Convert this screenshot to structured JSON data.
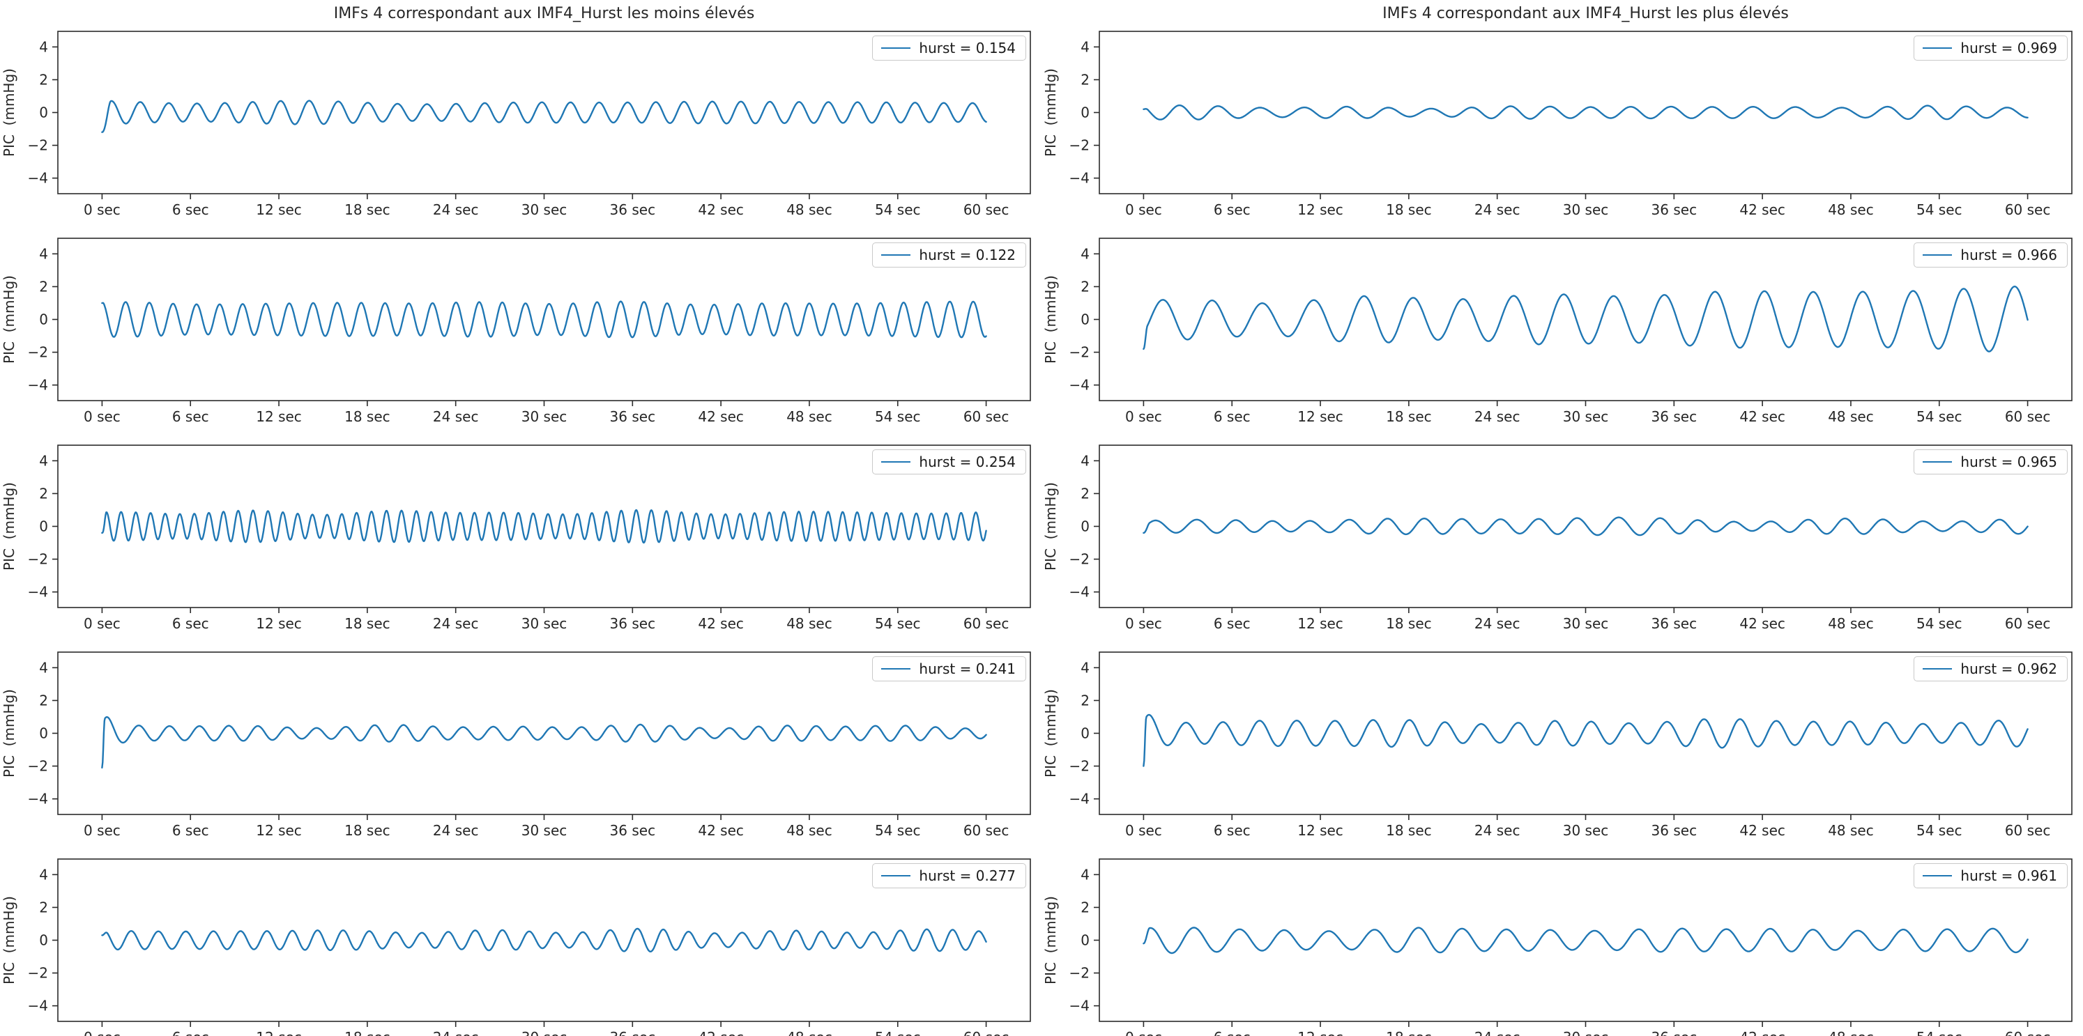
{
  "figure": {
    "titles": {
      "left": "IMFs 4 correspondant aux IMF4_Hurst les moins élevés",
      "right": "IMFs 4 correspondant aux IMF4_Hurst les plus élevés"
    }
  },
  "axes": {
    "ylabel": "PIC  (mmHg)",
    "y_tick_labels": [
      "4",
      "2",
      "0",
      "−2",
      "−4"
    ],
    "y_tick_values": [
      4,
      2,
      0,
      -2,
      -4
    ],
    "x_tick_labels": [
      "0 sec",
      "6 sec",
      "12 sec",
      "18 sec",
      "24 sec",
      "30 sec",
      "36 sec",
      "42 sec",
      "48 sec",
      "54 sec",
      "60 sec"
    ],
    "x_tick_values": [
      0,
      6,
      12,
      18,
      24,
      30,
      36,
      42,
      48,
      54,
      60
    ],
    "x_display_range": [
      -3,
      63
    ],
    "y_display_range": [
      -4.95,
      4.95
    ]
  },
  "style": {
    "line_color": "#1f77b4",
    "spine_color": "#2b2b2b",
    "text_color": "#262626",
    "legend_border_color": "#c9c9c9",
    "background": "#ffffff"
  },
  "chart_data": {
    "type": "line",
    "layout": "10 subplots in 5 rows x 2 columns; each shows one IMF-4 signal of PIC (mmHg) over 60 seconds; legend in each subplot gives its Hurst exponent; left column = 5 lowest Hurst values, right column = 5 highest",
    "x_unit": "sec",
    "y_unit": "mmHg",
    "x_range": [
      0,
      60
    ],
    "grid": false,
    "legend_position": "upper right",
    "series": [
      {
        "subplot": "row 1, left",
        "legend": "hurst = 0.154",
        "hurst": 0.154,
        "signal": {
          "period_sec": 1.95,
          "amplitude_mmHg": 0.62,
          "amp_variation": 0.25,
          "period_variation": 0.05,
          "amp_trend": [
            1,
            1
          ],
          "start_value": -1.2,
          "overshoot": 0,
          "overshoot_tau_sec": 0.7,
          "settle_sec": 0.6,
          "start_phase": -0.6,
          "seed": 101
        }
      },
      {
        "subplot": "row 1, right",
        "legend": "hurst = 0.969",
        "hurst": 0.969,
        "signal": {
          "period_sec": 2.8,
          "amplitude_mmHg": 0.34,
          "amp_variation": 0.55,
          "period_variation": 0.14,
          "amp_trend": [
            1,
            1
          ],
          "start_value": 0.2,
          "overshoot": 0,
          "overshoot_tau_sec": 0.7,
          "settle_sec": 0.4,
          "start_phase": 2.0,
          "seed": 606
        }
      },
      {
        "subplot": "row 2, left",
        "legend": "hurst = 0.122",
        "hurst": 0.122,
        "signal": {
          "period_sec": 1.6,
          "amplitude_mmHg": 1.0,
          "amp_variation": 0.15,
          "period_variation": 0.04,
          "amp_trend": [
            1,
            1
          ],
          "start_value": 1.0,
          "overshoot": 0,
          "overshoot_tau_sec": 0.7,
          "settle_sec": 0.15,
          "start_phase": 1.4,
          "seed": 202
        }
      },
      {
        "subplot": "row 2, right",
        "legend": "hurst = 0.966",
        "hurst": 0.966,
        "signal": {
          "period_sec": 3.4,
          "amplitude_mmHg": 1.45,
          "amp_variation": 0.22,
          "period_variation": 0.05,
          "amp_trend": [
            0.72,
            1.32
          ],
          "start_value": -1.8,
          "overshoot": 0,
          "overshoot_tau_sec": 0.7,
          "settle_sec": 0.25,
          "start_phase": -0.9,
          "seed": 707
        }
      },
      {
        "subplot": "row 3, left",
        "legend": "hurst = 0.254",
        "hurst": 0.254,
        "signal": {
          "period_sec": 1.0,
          "amplitude_mmHg": 0.85,
          "amp_variation": 0.22,
          "period_variation": 0.04,
          "amp_trend": [
            1,
            1
          ],
          "start_value": -0.4,
          "overshoot": 0,
          "overshoot_tau_sec": 0.7,
          "settle_sec": 0.3,
          "start_phase": -0.5,
          "seed": 303
        }
      },
      {
        "subplot": "row 3, right",
        "legend": "hurst = 0.965",
        "hurst": 0.965,
        "signal": {
          "period_sec": 2.6,
          "amplitude_mmHg": 0.42,
          "amp_variation": 0.55,
          "period_variation": 0.12,
          "amp_trend": [
            1,
            1
          ],
          "start_value": -0.4,
          "overshoot": 0,
          "overshoot_tau_sec": 0.7,
          "settle_sec": 0.4,
          "start_phase": -0.4,
          "seed": 808
        }
      },
      {
        "subplot": "row 4, left",
        "legend": "hurst = 0.241",
        "hurst": 0.241,
        "signal": {
          "period_sec": 2.0,
          "amplitude_mmHg": 0.42,
          "amp_variation": 0.35,
          "period_variation": 0.06,
          "amp_trend": [
            1,
            1
          ],
          "start_value": -2.1,
          "overshoot": 2.4,
          "overshoot_tau_sec": 0.7,
          "settle_sec": 0.18,
          "start_phase": 0.2,
          "seed": 404
        }
      },
      {
        "subplot": "row 4, right",
        "legend": "hurst = 0.962",
        "hurst": 0.962,
        "signal": {
          "period_sec": 2.5,
          "amplitude_mmHg": 0.72,
          "amp_variation": 0.35,
          "period_variation": 0.07,
          "amp_trend": [
            1,
            1
          ],
          "start_value": -2.0,
          "overshoot": 1.1,
          "overshoot_tau_sec": 0.8,
          "settle_sec": 0.18,
          "start_phase": 0.3,
          "seed": 909
        }
      },
      {
        "subplot": "row 5, left",
        "legend": "hurst = 0.277",
        "hurst": 0.277,
        "signal": {
          "period_sec": 1.8,
          "amplitude_mmHg": 0.55,
          "amp_variation": 0.45,
          "period_variation": 0.09,
          "amp_trend": [
            1,
            1
          ],
          "start_value": 0.3,
          "overshoot": 0,
          "overshoot_tau_sec": 0.7,
          "settle_sec": 0.4,
          "start_phase": 0.9,
          "seed": 505
        }
      },
      {
        "subplot": "row 5, right",
        "legend": "hurst = 0.961",
        "hurst": 0.961,
        "signal": {
          "period_sec": 3.0,
          "amplitude_mmHg": 0.66,
          "amp_variation": 0.28,
          "period_variation": 0.06,
          "amp_trend": [
            1,
            1
          ],
          "start_value": -0.2,
          "overshoot": 0,
          "overshoot_tau_sec": 0.7,
          "settle_sec": 0.4,
          "start_phase": 0.5,
          "seed": 1010
        }
      }
    ]
  }
}
